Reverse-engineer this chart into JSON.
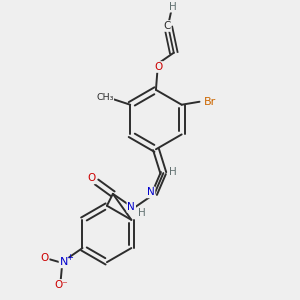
{
  "bg_color": "#efefef",
  "bond_color": "#2d2d2d",
  "atom_colors": {
    "O": "#cc0000",
    "N": "#0000cc",
    "Br": "#cc6600",
    "H": "#607070",
    "C": "#2d2d2d"
  },
  "figsize": [
    3.0,
    3.0
  ],
  "dpi": 100
}
